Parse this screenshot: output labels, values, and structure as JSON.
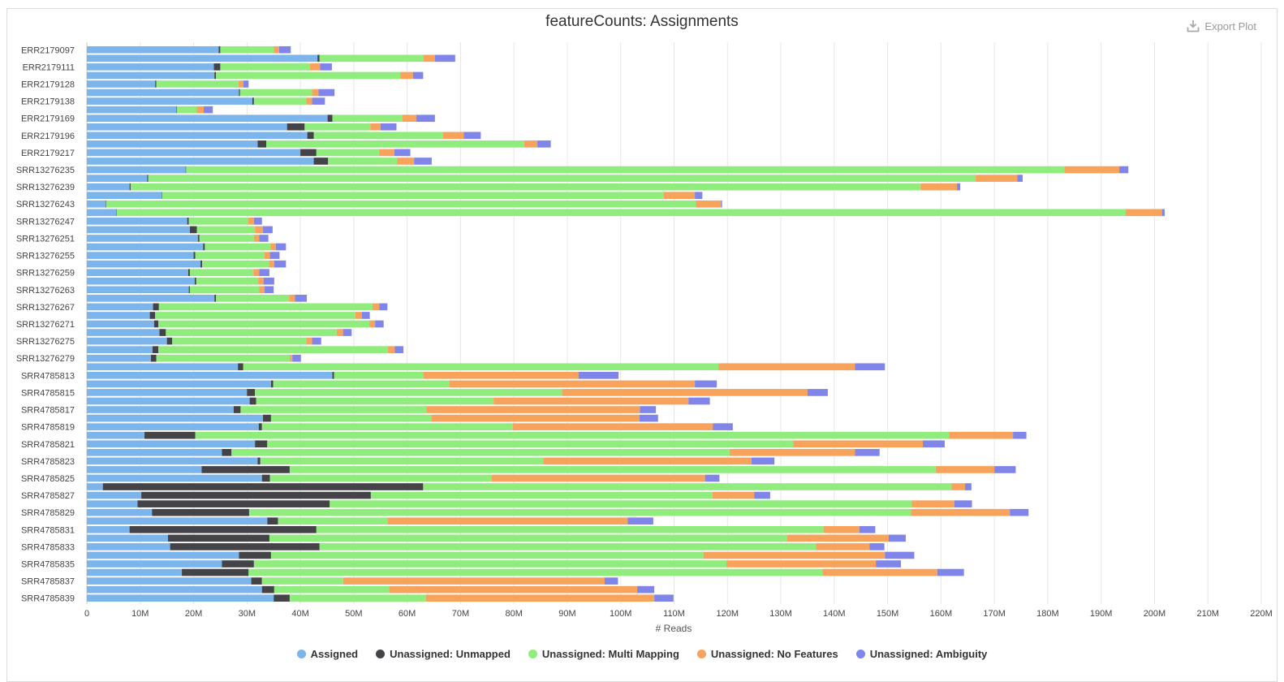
{
  "export_label": "Export Plot",
  "chart_data": {
    "type": "bar",
    "orientation": "horizontal",
    "stacked": true,
    "title": "featureCounts: Assignments",
    "xlabel": "# Reads",
    "ylabel": "",
    "xlim": [
      0,
      220000000
    ],
    "x_ticks": [
      "0",
      "10M",
      "20M",
      "30M",
      "40M",
      "50M",
      "60M",
      "70M",
      "80M",
      "90M",
      "100M",
      "110M",
      "120M",
      "130M",
      "140M",
      "150M",
      "160M",
      "170M",
      "180M",
      "190M",
      "200M",
      "210M",
      "220M"
    ],
    "grid": true,
    "legend_position": "bottom",
    "category_labels": [
      "ERR2179097",
      "",
      "ERR2179111",
      "",
      "ERR2179128",
      "",
      "ERR2179138",
      "",
      "ERR2179169",
      "",
      "ERR2179196",
      "",
      "ERR2179217",
      "",
      "SRR13276235",
      "",
      "SRR13276239",
      "",
      "SRR13276243",
      "",
      "SRR13276247",
      "",
      "SRR13276251",
      "",
      "SRR13276255",
      "",
      "SRR13276259",
      "",
      "SRR13276263",
      "",
      "SRR13276267",
      "",
      "SRR13276271",
      "",
      "SRR13276275",
      "",
      "SRR13276279",
      "",
      "SRR4785813",
      "",
      "SRR4785815",
      "",
      "SRR4785817",
      "",
      "SRR4785819",
      "",
      "SRR4785821",
      "",
      "SRR4785823",
      "",
      "SRR4785825",
      "",
      "SRR4785827",
      "",
      "SRR4785829",
      "",
      "SRR4785831",
      "",
      "SRR4785833",
      "",
      "SRR4785835",
      "",
      "SRR4785837",
      "",
      "SRR4785839"
    ],
    "series": [
      {
        "name": "Assigned",
        "color": "#7cb5ec",
        "values": [
          24.7,
          43.2,
          23.8,
          23.9,
          12.8,
          28.5,
          31.0,
          16.8,
          45.1,
          37.5,
          41.3,
          32.0,
          40.0,
          42.5,
          18.5,
          11.3,
          8.0,
          14.0,
          3.5,
          5.5,
          18.8,
          19.3,
          20.8,
          21.8,
          20.0,
          21.3,
          19.0,
          20.2,
          19.1,
          23.9,
          12.4,
          11.8,
          12.6,
          13.6,
          15.0,
          12.3,
          12.0,
          28.3,
          46.0,
          34.5,
          30.0,
          30.5,
          27.5,
          33.0,
          32.2,
          10.8,
          31.5,
          25.3,
          32.0,
          21.5,
          32.8,
          3.0,
          10.2,
          9.5,
          12.2,
          33.8,
          8.0,
          15.2,
          15.6,
          28.5,
          25.3,
          17.8,
          30.8,
          32.8,
          35.0
        ]
      },
      {
        "name": "Unassigned: Unmapped",
        "color": "#434348",
        "values": [
          0.3,
          0.4,
          1.2,
          0.3,
          0.2,
          0.2,
          0.3,
          0.1,
          0.9,
          3.3,
          1.2,
          1.6,
          3.0,
          2.7,
          0.1,
          0.2,
          0.2,
          0.1,
          0.1,
          0.1,
          0.3,
          1.3,
          0.3,
          0.3,
          0.3,
          0.3,
          0.3,
          0.3,
          0.2,
          0.3,
          1.1,
          1.0,
          0.8,
          1.2,
          1.0,
          1.1,
          1.0,
          1.0,
          0.3,
          0.4,
          1.5,
          1.2,
          1.3,
          1.5,
          0.6,
          9.5,
          2.3,
          1.8,
          0.5,
          16.5,
          1.5,
          60.0,
          43.0,
          36.0,
          18.2,
          2.0,
          35.0,
          19.0,
          28.0,
          6.0,
          6.0,
          12.5,
          2.0,
          2.3,
          3.0
        ]
      },
      {
        "name": "Unassigned: Multi Mapping",
        "color": "#90ed7d",
        "values": [
          10.0,
          19.5,
          16.8,
          34.5,
          15.4,
          13.5,
          9.8,
          3.7,
          13.1,
          12.3,
          24.2,
          48.3,
          11.8,
          12.9,
          164.5,
          155.0,
          148.0,
          94.0,
          110.5,
          189.0,
          11.1,
          10.9,
          10.2,
          12.3,
          13.0,
          12.5,
          11.9,
          11.6,
          13.0,
          13.7,
          40.0,
          37.5,
          39.5,
          32.0,
          25.1,
          43.0,
          25.0,
          89.0,
          16.8,
          33.0,
          57.5,
          44.5,
          34.8,
          30.0,
          47.0,
          141.2,
          98.5,
          93.3,
          53.0,
          121.0,
          41.5,
          99.0,
          64.0,
          109.0,
          124.0,
          20.5,
          95.0,
          97.0,
          93.0,
          81.0,
          88.5,
          107.5,
          15.2,
          21.5,
          25.5
        ]
      },
      {
        "name": "Unassigned: No Features",
        "color": "#f7a35c",
        "values": [
          1.0,
          2.1,
          1.9,
          2.4,
          0.9,
          1.2,
          1.1,
          1.3,
          2.6,
          1.9,
          3.9,
          2.5,
          2.8,
          3.2,
          10.3,
          7.8,
          6.8,
          5.8,
          4.7,
          6.8,
          1.1,
          1.5,
          1.0,
          1.0,
          1.0,
          1.0,
          1.1,
          1.0,
          1.0,
          1.1,
          1.3,
          1.2,
          1.1,
          1.2,
          1.1,
          1.3,
          0.5,
          25.6,
          29.0,
          46.0,
          46.0,
          36.5,
          40.0,
          39.0,
          37.5,
          12.0,
          24.3,
          23.5,
          39.0,
          11.0,
          40.0,
          2.5,
          7.8,
          8.0,
          18.5,
          45.0,
          6.7,
          19.0,
          10.0,
          34.0,
          28.0,
          21.5,
          49.0,
          46.5,
          42.8
        ]
      },
      {
        "name": "Unassigned: Ambiguity",
        "color": "#8085e9",
        "values": [
          2.2,
          3.8,
          2.2,
          1.9,
          1.0,
          3.0,
          2.4,
          1.7,
          3.5,
          3.0,
          3.2,
          2.5,
          3.0,
          3.3,
          1.7,
          1.0,
          0.6,
          1.4,
          0.2,
          0.5,
          1.5,
          1.8,
          1.7,
          1.9,
          1.8,
          2.2,
          1.9,
          2.0,
          1.7,
          2.2,
          1.5,
          1.5,
          1.6,
          1.6,
          1.7,
          1.6,
          1.6,
          5.6,
          7.5,
          4.1,
          3.8,
          4.0,
          3.0,
          3.5,
          3.7,
          2.5,
          4.1,
          4.6,
          4.3,
          4.0,
          2.7,
          1.2,
          3.0,
          3.3,
          3.5,
          4.8,
          3.0,
          3.2,
          2.8,
          5.5,
          4.7,
          5.0,
          2.5,
          3.2,
          3.6
        ]
      }
    ]
  }
}
